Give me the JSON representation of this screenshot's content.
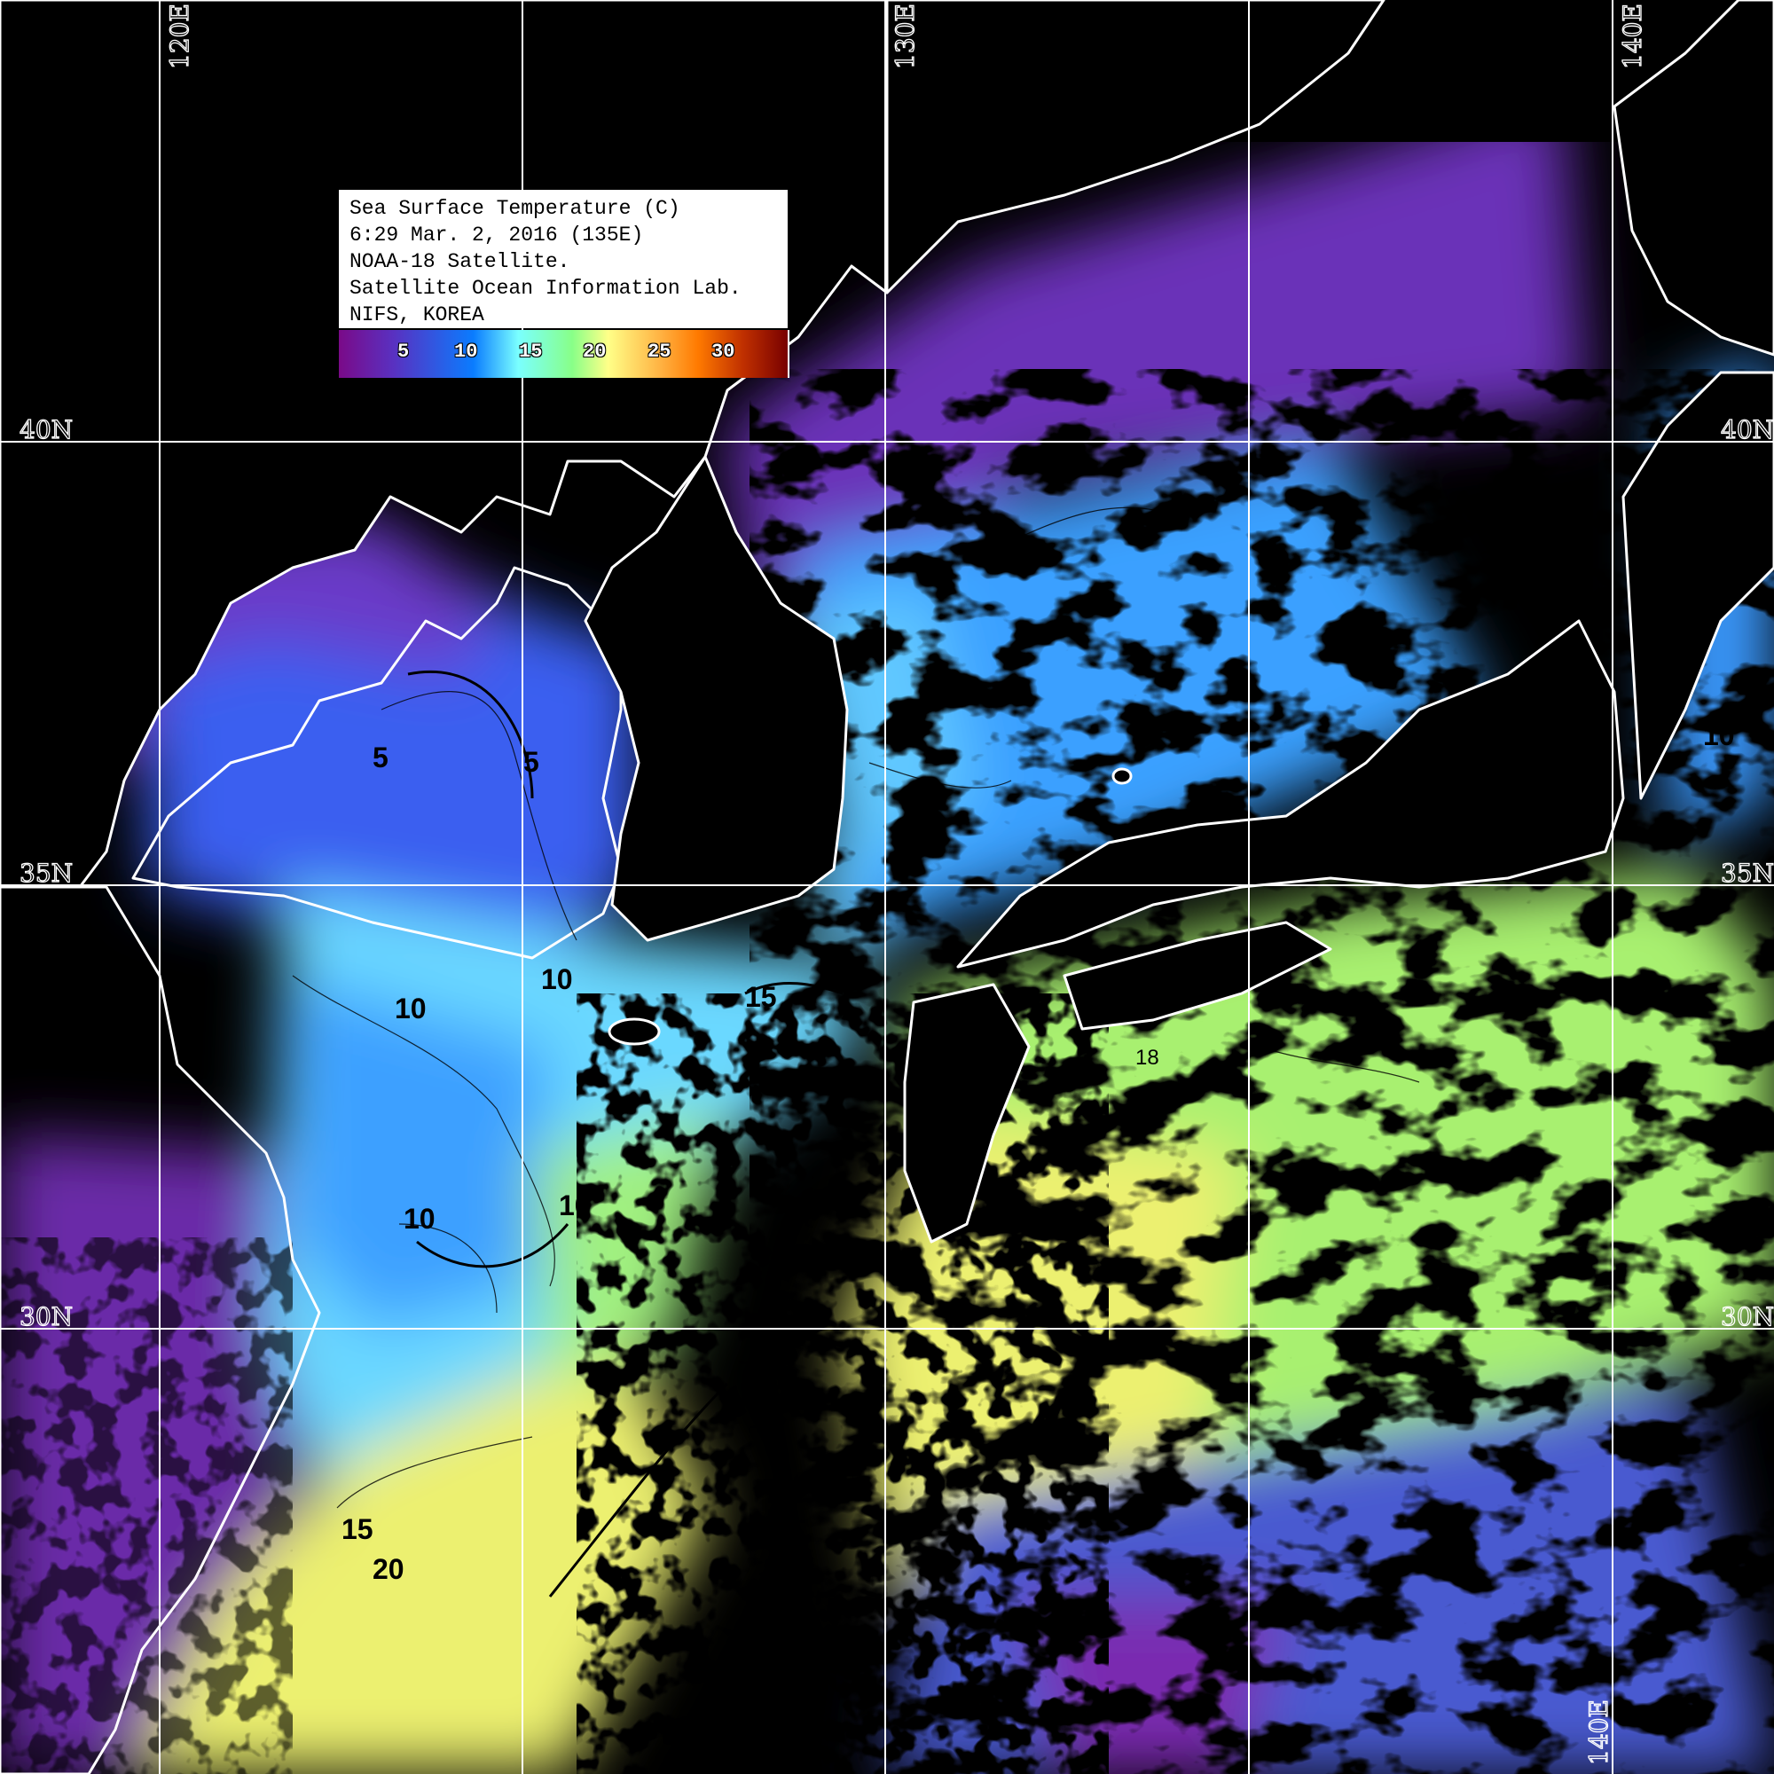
{
  "legend": {
    "lines": [
      "Sea Surface Temperature (C)",
      "6:29 Mar. 2, 2016 (135E)",
      "NOAA-18 Satellite.",
      "Satellite Ocean Information Lab.",
      "NIFS, KOREA"
    ],
    "colorbar_ticks": [
      "5",
      "10",
      "15",
      "20",
      "25",
      "30"
    ],
    "colorbar_colors": [
      "#7a0a88",
      "#0a7cff",
      "#7affff",
      "#88ff88",
      "#ffff88",
      "#ff7a00",
      "#780000"
    ]
  },
  "grid": {
    "lon_labels": [
      "120E",
      "130E",
      "140E"
    ],
    "lat_labels": [
      "40N",
      "35N",
      "30N"
    ],
    "bottom_lon_label": "140E"
  },
  "contour_labels": [
    "5",
    "5",
    "10",
    "10",
    "10",
    "15",
    "10",
    "15",
    "20",
    "18",
    "10"
  ],
  "colors": {
    "land": "#000000",
    "coastline": "#ffffff",
    "grid": "#ffffff"
  }
}
